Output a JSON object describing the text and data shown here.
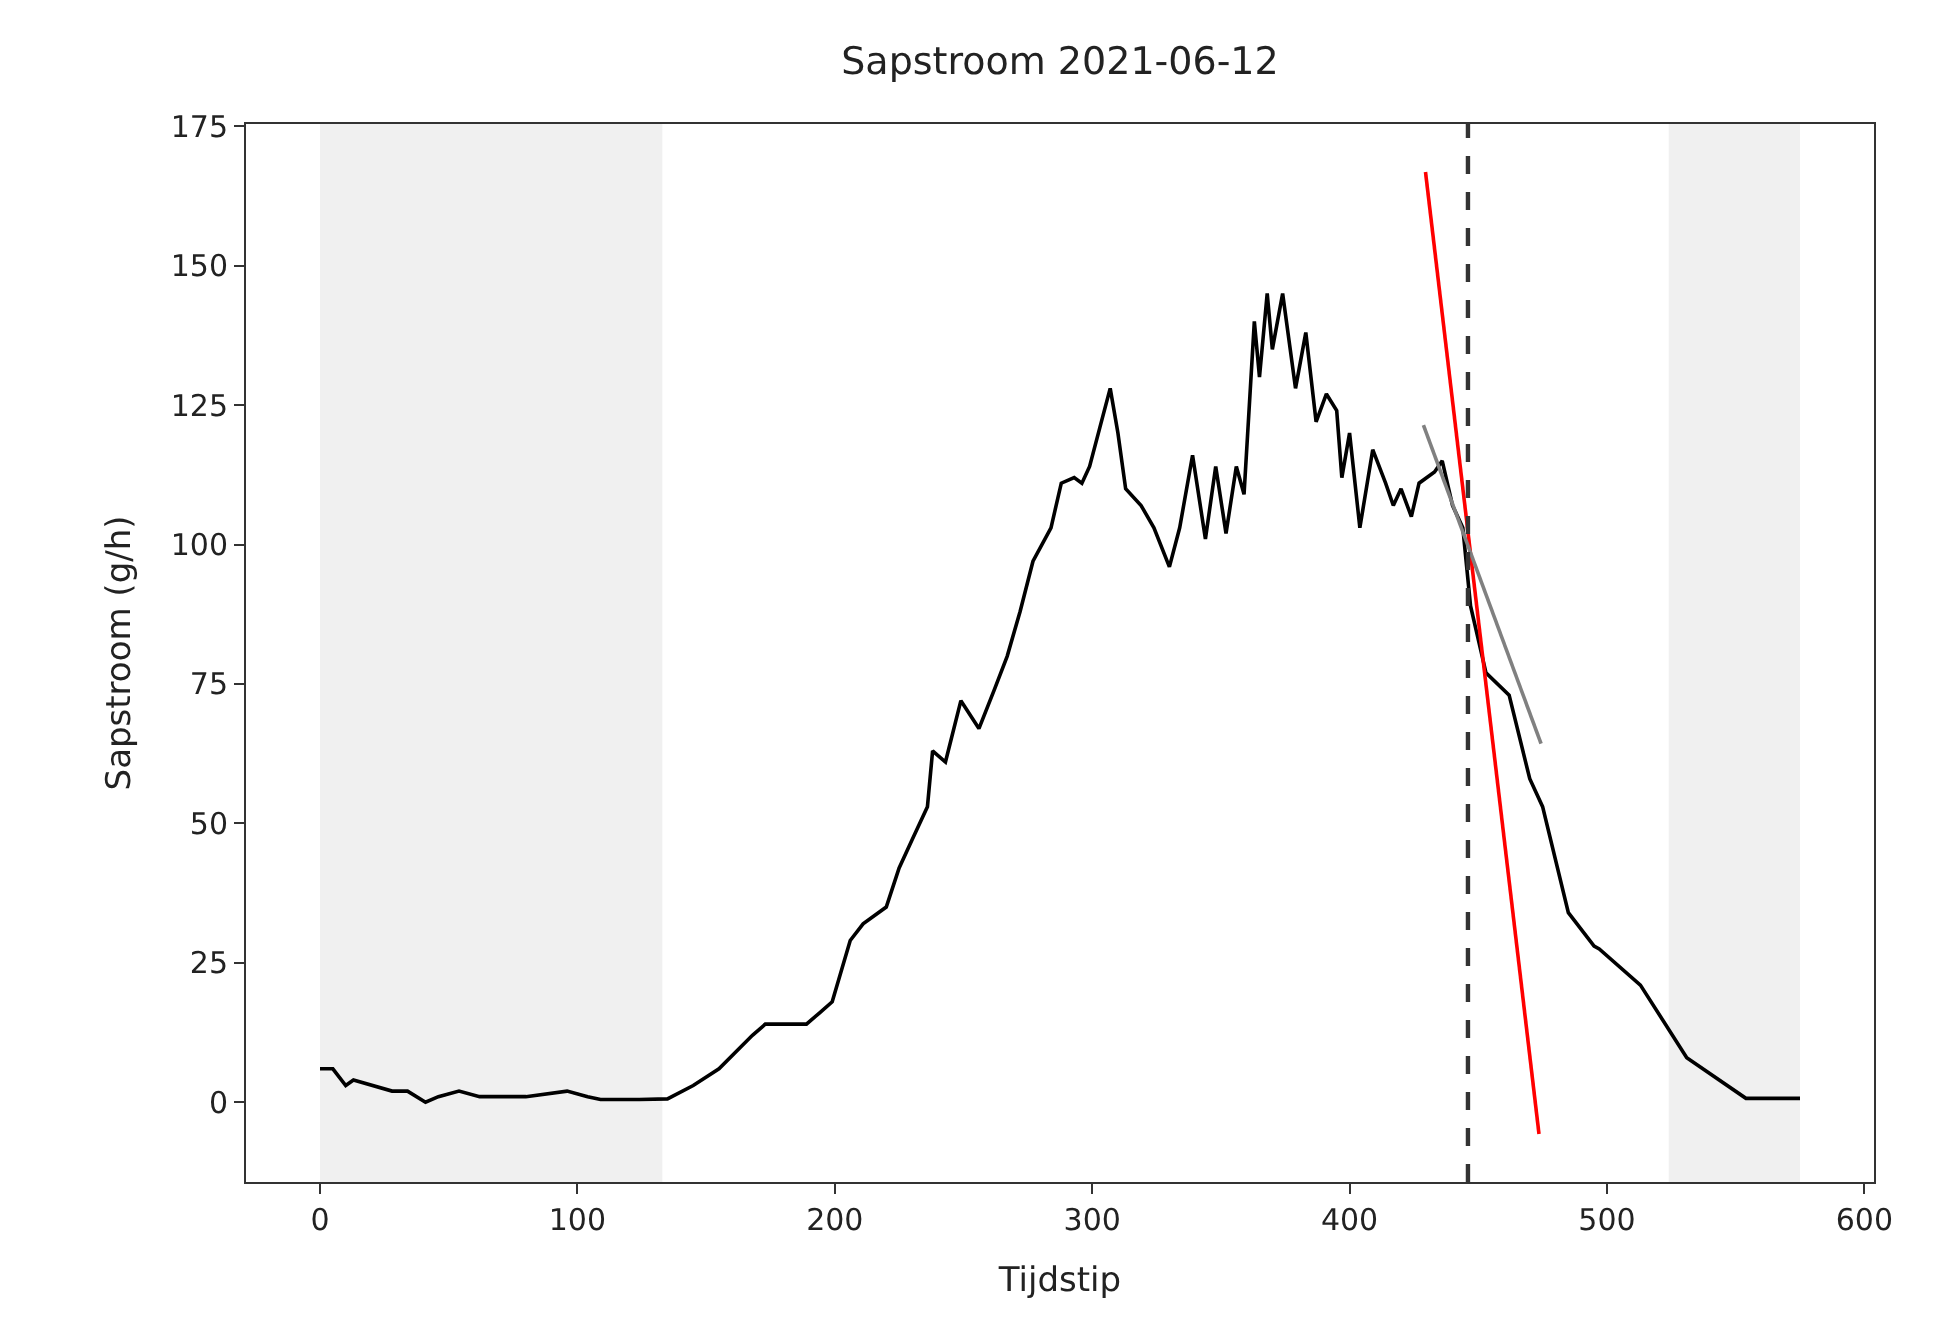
{
  "chart_data": {
    "type": "line",
    "title": "Sapstroom 2021-06-12",
    "xlabel": "Tijdstip",
    "ylabel": "Sapstroom (g/h)",
    "xlim": [
      -28.75,
      603.75
    ],
    "xticks": [
      0,
      100,
      200,
      300,
      400,
      500,
      600
    ],
    "ylim": [
      -14.3,
      175.4
    ],
    "yticks": [
      0,
      25,
      50,
      75,
      100,
      125,
      150,
      175
    ],
    "grid": false,
    "line_style": "solid",
    "marker": "none",
    "series": [
      {
        "color": "#000000",
        "x": [
          0,
          5,
          10,
          13,
          28,
          34,
          41,
          46,
          54,
          62,
          80,
          96,
          104,
          109,
          124,
          135,
          145,
          155,
          168,
          173,
          189,
          194,
          199,
          206,
          211,
          220,
          225,
          230,
          236,
          238,
          243,
          249,
          256,
          262,
          267,
          272,
          277,
          284,
          288,
          293,
          296,
          299,
          303,
          307,
          310,
          313,
          319,
          324,
          330,
          334,
          339,
          344,
          348,
          352,
          356,
          359,
          363,
          365,
          368,
          370,
          374,
          379,
          383,
          387,
          391,
          395,
          397,
          400,
          404,
          409,
          414,
          417,
          420,
          424,
          427,
          433,
          436,
          440,
          444,
          447,
          453,
          462,
          470,
          475,
          485,
          495,
          497,
          513,
          531,
          554,
          570,
          575
        ],
        "values": [
          6,
          6,
          3,
          4,
          2,
          2,
          0,
          1,
          2,
          1,
          1,
          2,
          1,
          0.5,
          0.5,
          0.6,
          3,
          6,
          12,
          14,
          14,
          16,
          18,
          29,
          32,
          35,
          42,
          47,
          53,
          63,
          61,
          72,
          67,
          74,
          80,
          88,
          97,
          103,
          111,
          112,
          111,
          114,
          121,
          128,
          120,
          110,
          107,
          103,
          96,
          103,
          116,
          101,
          114,
          102,
          114,
          109,
          140,
          130,
          145,
          135,
          145,
          128,
          138,
          122,
          127,
          124,
          112,
          120,
          103,
          117,
          111,
          107,
          110,
          105,
          111,
          113,
          115,
          107,
          103,
          89,
          77,
          73,
          58,
          53,
          34,
          28,
          27.5,
          21,
          8,
          0.7,
          0.7,
          0.7
        ]
      },
      {
        "color": "#ff0000",
        "x": [
          429.5,
          473.6
        ],
        "values": [
          166.8,
          -5.7
        ]
      },
      {
        "color": "#808080",
        "x": [
          428.7,
          474.4
        ],
        "values": [
          121.4,
          64.3
        ]
      }
    ],
    "ref_lines": [
      {
        "axis": "x",
        "value": 446,
        "color": "#333333",
        "line_style": "dashed"
      }
    ],
    "bands": [
      {
        "axis": "x",
        "from": 0,
        "to": 133,
        "color": "#f0f0f0"
      },
      {
        "axis": "x",
        "from": 524,
        "to": 575,
        "color": "#f0f0f0"
      }
    ]
  }
}
